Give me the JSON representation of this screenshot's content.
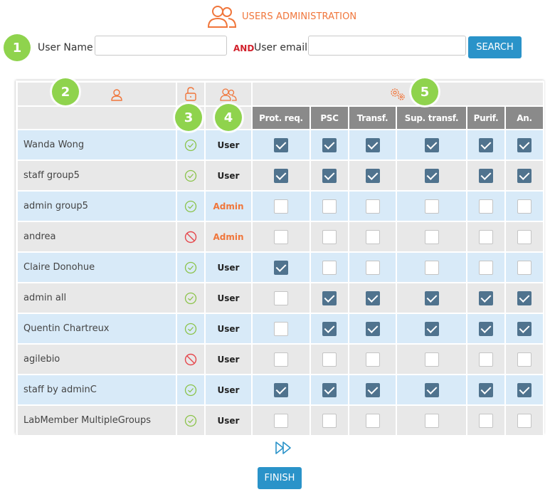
{
  "header": {
    "title": "USERS ADMINISTRATION",
    "icon": "users-icon"
  },
  "search": {
    "user_name_label": "User Name",
    "user_name_value": "",
    "and_label": "AND",
    "user_email_label": "User email",
    "user_email_value": "",
    "button_label": "SEARCH"
  },
  "badges": [
    "1",
    "2",
    "3",
    "4",
    "5"
  ],
  "table": {
    "header_icons": {
      "user": "user-icon",
      "status": "unlock-icon",
      "role": "users-icon",
      "permissions": "gears-icon"
    },
    "permission_columns": [
      "Prot. req.",
      "PSC",
      "Transf.",
      "Sup. transf.",
      "Purif.",
      "An."
    ],
    "rows": [
      {
        "name": "Wanda Wong",
        "status": "active",
        "role": "User",
        "perms": [
          true,
          true,
          true,
          true,
          true,
          true
        ]
      },
      {
        "name": "staff group5",
        "status": "active",
        "role": "User",
        "perms": [
          true,
          true,
          true,
          true,
          true,
          true
        ]
      },
      {
        "name": "admin group5",
        "status": "active",
        "role": "Admin",
        "perms": [
          false,
          false,
          false,
          false,
          false,
          false
        ]
      },
      {
        "name": "andrea",
        "status": "blocked",
        "role": "Admin",
        "perms": [
          false,
          false,
          false,
          false,
          false,
          false
        ]
      },
      {
        "name": "Claire Donohue",
        "status": "active",
        "role": "User",
        "perms": [
          true,
          false,
          false,
          false,
          false,
          false
        ]
      },
      {
        "name": "admin all",
        "status": "active",
        "role": "User",
        "perms": [
          false,
          true,
          true,
          true,
          true,
          true
        ]
      },
      {
        "name": "Quentin Chartreux",
        "status": "active",
        "role": "User",
        "perms": [
          false,
          true,
          true,
          true,
          true,
          true
        ]
      },
      {
        "name": "agilebio",
        "status": "blocked",
        "role": "User",
        "perms": [
          false,
          false,
          false,
          false,
          false,
          false
        ]
      },
      {
        "name": "staff by adminC",
        "status": "active",
        "role": "User",
        "perms": [
          true,
          true,
          true,
          true,
          true,
          true
        ]
      },
      {
        "name": "LabMember MultipleGroups",
        "status": "active",
        "role": "User",
        "perms": [
          false,
          false,
          false,
          false,
          false,
          false
        ]
      }
    ]
  },
  "pagination": {
    "icon": "fast-forward-icon"
  },
  "finish": {
    "label": "FINISH"
  },
  "colors": {
    "accent": "#f0763b",
    "button": "#2a93c9",
    "badge": "#8fd34d",
    "checked": "#50738e",
    "row_blue": "#d8eaf8",
    "row_gray": "#e8e8e8",
    "active": "#8bc34a",
    "blocked": "#e5484d"
  }
}
